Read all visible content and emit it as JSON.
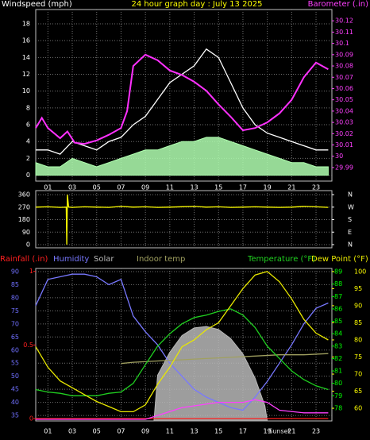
{
  "chart_data": [
    {
      "type": "line",
      "title": "24 hour graph day : July 13 2025",
      "ylabel": "Windspeed (mph)",
      "y2label": "Barometer (.in)",
      "xlim": [
        0,
        24.3
      ],
      "xticks": [
        {
          "value": 1,
          "label": "01"
        },
        {
          "value": 3,
          "label": "03"
        },
        {
          "value": 5,
          "label": "05"
        },
        {
          "value": 7,
          "label": "07"
        },
        {
          "value": 9,
          "label": "09"
        },
        {
          "value": 11,
          "label": "11"
        },
        {
          "value": 13,
          "label": "13"
        },
        {
          "value": 15,
          "label": "15"
        },
        {
          "value": 17,
          "label": "17"
        },
        {
          "value": 19,
          "label": "19"
        },
        {
          "value": 21,
          "label": "21"
        },
        {
          "value": 23,
          "label": "23"
        }
      ],
      "ylim": [
        -0.7,
        19.7
      ],
      "yticks": [
        0,
        2,
        4,
        6,
        8,
        10,
        12,
        14,
        16,
        18
      ],
      "ytick_color": "#ffffff",
      "y2lim": [
        29.978,
        30.13
      ],
      "y2ticks": [
        29.99,
        30,
        30.01,
        30.02,
        30.03,
        30.04,
        30.05,
        30.06,
        30.07,
        30.08,
        30.09,
        30.1,
        30.11,
        30.12
      ],
      "y2tick_color": "#ff40ff",
      "grid": true,
      "series": [
        {
          "color": "#ffffff",
          "style": "line",
          "x": [
            0,
            1,
            2,
            3,
            4,
            5,
            6,
            7,
            8,
            9,
            10,
            11,
            12,
            13,
            14,
            15,
            16,
            17,
            18,
            19,
            20,
            21,
            22,
            23,
            24
          ],
          "values": [
            3,
            3,
            2.5,
            4,
            3.5,
            3,
            4,
            4.5,
            6,
            7,
            9,
            11,
            12,
            13,
            15,
            14,
            11,
            8,
            6,
            5,
            4.5,
            4,
            3.5,
            3,
            3
          ]
        },
        {
          "color": "#b0ffb0",
          "style": "area",
          "x": [
            0,
            1,
            2,
            3,
            4,
            5,
            6,
            7,
            8,
            9,
            10,
            11,
            12,
            13,
            14,
            15,
            16,
            17,
            18,
            19,
            20,
            21,
            22,
            23,
            24
          ],
          "values": [
            1.5,
            1,
            1,
            2,
            1.5,
            1,
            1.5,
            2,
            2.5,
            3,
            3,
            3.5,
            4,
            4,
            4.5,
            4.5,
            4,
            3.5,
            3,
            2.5,
            2,
            1.5,
            1.5,
            1,
            1
          ]
        },
        {
          "color": "#ff30ff",
          "style": "line",
          "axis": "y2",
          "x": [
            0,
            0.5,
            1,
            2,
            2.6,
            3.2,
            4,
            5,
            6,
            7,
            7.5,
            8,
            9,
            10,
            11,
            12,
            13,
            14,
            15,
            16,
            17,
            18,
            19,
            20,
            21,
            22,
            23,
            24
          ],
          "values": [
            30.025,
            30.034,
            30.025,
            30.016,
            30.022,
            30.012,
            30.011,
            30.014,
            30.019,
            30.025,
            30.04,
            30.08,
            30.09,
            30.085,
            30.076,
            30.072,
            30.066,
            30.058,
            30.046,
            30.035,
            30.023,
            30.025,
            30.03,
            30.038,
            30.05,
            30.07,
            30.083,
            30.077
          ]
        }
      ]
    },
    {
      "type": "line",
      "xlim": [
        0,
        24.3
      ],
      "xticks": [
        1,
        3,
        5,
        7,
        9,
        11,
        13,
        15,
        17,
        19,
        21,
        23
      ],
      "xtick_labels": false,
      "ylim": [
        -23,
        389
      ],
      "yticks": [
        0,
        90,
        180,
        270,
        360
      ],
      "ytick_color": "#ffffff",
      "y2lim": [
        -23,
        389
      ],
      "y2ticks": [
        {
          "value": 360,
          "label": "N"
        },
        {
          "value": 270,
          "label": "W"
        },
        {
          "value": 180,
          "label": "S"
        },
        {
          "value": 90,
          "label": "E"
        },
        {
          "value": 0,
          "label": "N"
        }
      ],
      "y2tick_color": "#ffffff",
      "grid": true,
      "series": [
        {
          "color": "#ffff00",
          "style": "line",
          "x": [
            0,
            1,
            2,
            2.5,
            2.55,
            2.6,
            2.7,
            3,
            4,
            5,
            6,
            7,
            8,
            9,
            10,
            11,
            12,
            13,
            14,
            15,
            16,
            17,
            18,
            19,
            20,
            21,
            22,
            23,
            24
          ],
          "values": [
            270,
            272,
            268,
            270,
            0,
            360,
            270,
            268,
            272,
            270,
            268,
            275,
            270,
            272,
            268,
            270,
            273,
            275,
            270,
            272,
            268,
            270,
            272,
            270,
            268,
            270,
            275,
            272,
            268
          ]
        }
      ]
    },
    {
      "type": "line",
      "xlim": [
        0,
        24.3
      ],
      "xticks": [
        {
          "value": 1,
          "label": "01"
        },
        {
          "value": 3,
          "label": "03"
        },
        {
          "value": 5,
          "label": "05"
        },
        {
          "value": 7,
          "label": "07"
        },
        {
          "value": 9,
          "label": "09"
        },
        {
          "value": 11,
          "label": "11"
        },
        {
          "value": 13,
          "label": "13"
        },
        {
          "value": 15,
          "label": "15"
        },
        {
          "value": 17,
          "label": "17"
        },
        {
          "value": 19,
          "label": "19"
        },
        {
          "value": 21,
          "label": "21"
        },
        {
          "value": 23,
          "label": "23"
        }
      ],
      "ylim": [
        32.9,
        91.2
      ],
      "yticks": [
        35,
        40,
        45,
        50,
        55,
        60,
        65,
        70,
        75,
        80,
        85,
        90
      ],
      "ytick_color": "#7070ff",
      "y2lim": [
        76.97,
        89.26
      ],
      "y2ticks": [
        78,
        79,
        80,
        81,
        82,
        83,
        84,
        85,
        86,
        87,
        88,
        89
      ],
      "y2tick_color": "#00ff00",
      "y3lim": [
        56.3,
        100.9
      ],
      "y3ticks": [
        60,
        65,
        70,
        75,
        80,
        85,
        90,
        95,
        100
      ],
      "y3tick_color": "#ffff00",
      "y4lim": [
        -0.016,
        1.02
      ],
      "y4ticks": [
        0,
        0.5,
        1
      ],
      "y4tick_color": "#ff2020",
      "y5lim": [
        0,
        1000
      ],
      "grid": true,
      "annotations": [
        {
          "text": "Sunset",
          "x": 20
        }
      ],
      "series": [
        {
          "name": "Rainfall (.in)",
          "color": "#ff2020",
          "style": "line",
          "axis": "y4",
          "x": [
            0,
            24
          ],
          "values": [
            0,
            0
          ]
        },
        {
          "name": "Humidity",
          "color": "#7878ff",
          "style": "line",
          "axis": "y",
          "x": [
            0,
            1,
            2,
            3,
            4,
            5,
            6,
            7,
            8,
            9,
            10,
            11,
            12,
            13,
            14,
            15,
            16,
            17,
            18,
            19,
            20,
            21,
            22,
            23,
            24
          ],
          "values": [
            77,
            87,
            88,
            89,
            89,
            88,
            85,
            87,
            73,
            67,
            62,
            55,
            50,
            45,
            42,
            40,
            38,
            37,
            42,
            48,
            55,
            62,
            70,
            76,
            78
          ]
        },
        {
          "name": "Solar",
          "color": "#b8b8b8",
          "style": "area",
          "axis": "y5",
          "x": [
            9.7,
            10,
            11,
            12,
            13,
            14,
            15,
            16,
            17,
            18,
            18.8,
            19
          ],
          "values": [
            0,
            300,
            450,
            560,
            610,
            620,
            600,
            540,
            440,
            280,
            100,
            0
          ]
        },
        {
          "name": "Indoor temp",
          "color": "#a0a060",
          "style": "line",
          "axis": "y2",
          "x": [
            7,
            8,
            10,
            12,
            14,
            16,
            18,
            20,
            22,
            24
          ],
          "values": [
            81.6,
            81.7,
            81.8,
            81.9,
            82,
            82.1,
            82.2,
            82.3,
            82.3,
            82.4
          ]
        },
        {
          "name": "Temperature (°F)",
          "color": "#20d020",
          "style": "line",
          "axis": "y2",
          "x": [
            0,
            1,
            2,
            3,
            4,
            5,
            6,
            7,
            8,
            9,
            10,
            11,
            12,
            13,
            14,
            15,
            16,
            17,
            18,
            19,
            20,
            21,
            22,
            23,
            24
          ],
          "values": [
            79.5,
            79.3,
            79.2,
            79,
            79,
            79,
            79.2,
            79.3,
            80,
            81.5,
            83,
            84,
            84.8,
            85.3,
            85.5,
            85.8,
            86,
            85.5,
            84.5,
            83,
            82,
            81,
            80.3,
            79.8,
            79.5
          ]
        },
        {
          "name": "Dew Point (°F)",
          "color": "#e8e800",
          "style": "line",
          "axis": "y3",
          "x": [
            0,
            1,
            2,
            3,
            4,
            5,
            6,
            7,
            8,
            9,
            10,
            11,
            12,
            13,
            14,
            15,
            16,
            17,
            18,
            19,
            20,
            21,
            22,
            23,
            24
          ],
          "values": [
            78,
            72,
            68,
            66,
            64,
            62,
            60.5,
            59,
            59,
            61,
            67,
            72,
            78,
            80,
            83,
            85,
            90,
            95,
            99,
            100,
            97,
            92,
            86,
            82,
            80
          ]
        },
        {
          "color": "#ff40ff",
          "style": "line",
          "axis": "y",
          "x": [
            0,
            9,
            10,
            12,
            15,
            17,
            18,
            19,
            20,
            22,
            24
          ],
          "values": [
            33.5,
            33.5,
            35,
            38,
            40,
            40,
            41,
            40,
            37,
            36,
            36
          ]
        }
      ]
    }
  ]
}
